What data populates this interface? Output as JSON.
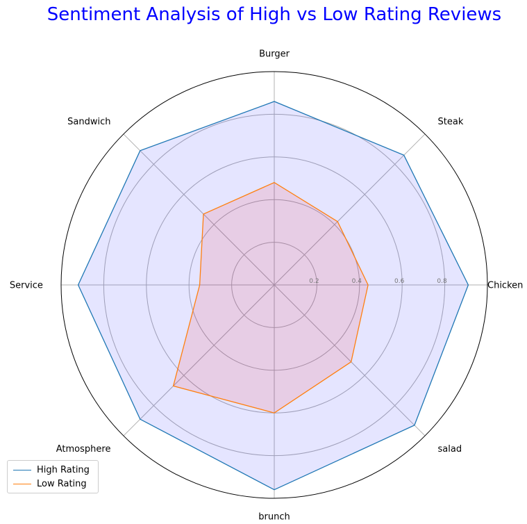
{
  "chart_data": {
    "type": "radar",
    "title": "Sentiment Analysis of High vs Low Rating Reviews",
    "categories": [
      "Chicken",
      "Steak",
      "Burger",
      "Sandwich",
      "Service",
      "Atmosphere",
      "brunch",
      "salad"
    ],
    "radial_ticks": [
      "0.2",
      "0.4",
      "0.6",
      "0.8"
    ],
    "rlim": [
      0,
      1.0
    ],
    "grid": true,
    "legend_position": "bottom-left",
    "series": [
      {
        "name": "High Rating",
        "values": [
          0.91,
          0.86,
          0.86,
          0.89,
          0.92,
          0.89,
          0.96,
          0.93
        ],
        "color": "#1f77b4",
        "fill": "#0000ff"
      },
      {
        "name": "Low Rating",
        "values": [
          0.44,
          0.42,
          0.48,
          0.47,
          0.35,
          0.67,
          0.6,
          0.51
        ],
        "color": "#ff7f0e",
        "fill": "#ff0000"
      }
    ]
  }
}
